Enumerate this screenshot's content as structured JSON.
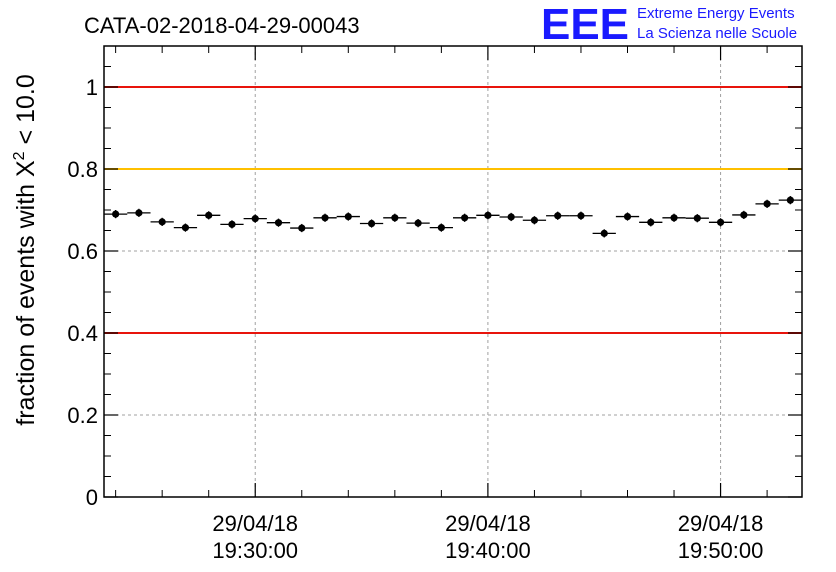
{
  "chart_data": {
    "type": "scatter",
    "title": "CATA-02-2018-04-29-00043",
    "xlabel": "",
    "ylabel": "fraction of events with X² < 10.0",
    "ylabel_parts": {
      "prefix": "fraction of events with X",
      "sup": "2",
      "suffix": " < 10.0"
    },
    "ylim": [
      0,
      1.1
    ],
    "xlim_minutes_after_19_00": [
      23.5,
      53.5
    ],
    "y_ticks": [
      "0",
      "0.2",
      "0.4",
      "0.6",
      "0.8",
      "1"
    ],
    "y_tick_values": [
      0,
      0.2,
      0.4,
      0.6,
      0.8,
      1.0
    ],
    "x_ticks": [
      {
        "minute": 30,
        "date": "29/04/18",
        "time": "19:30:00"
      },
      {
        "minute": 40,
        "date": "29/04/18",
        "time": "19:40:00"
      },
      {
        "minute": 50,
        "date": "29/04/18",
        "time": "19:50:00"
      }
    ],
    "grid": true,
    "reference_lines": [
      {
        "y": 1.0,
        "color": "#e8140c"
      },
      {
        "y": 0.8,
        "color": "#ffc000"
      },
      {
        "y": 0.4,
        "color": "#e8140c"
      }
    ],
    "series": [
      {
        "name": "fraction",
        "bin_width_minutes": 1.0,
        "x_minutes": [
          24.0,
          25.0,
          26.0,
          27.0,
          28.0,
          29.0,
          30.0,
          31.0,
          32.0,
          33.0,
          34.0,
          35.0,
          36.0,
          37.0,
          38.0,
          39.0,
          40.0,
          41.0,
          42.0,
          43.0,
          44.0,
          45.0,
          46.0,
          47.0,
          48.0,
          49.0,
          50.0,
          51.0,
          52.0,
          53.0
        ],
        "values": [
          0.69,
          0.693,
          0.671,
          0.657,
          0.687,
          0.665,
          0.679,
          0.669,
          0.656,
          0.681,
          0.684,
          0.667,
          0.681,
          0.668,
          0.657,
          0.681,
          0.687,
          0.683,
          0.675,
          0.686,
          0.686,
          0.643,
          0.684,
          0.67,
          0.681,
          0.68,
          0.67,
          0.688,
          0.715,
          0.724
        ],
        "errors": [
          0.01,
          0.01,
          0.01,
          0.01,
          0.01,
          0.01,
          0.01,
          0.01,
          0.01,
          0.01,
          0.01,
          0.01,
          0.01,
          0.01,
          0.01,
          0.01,
          0.01,
          0.01,
          0.01,
          0.01,
          0.01,
          0.01,
          0.01,
          0.01,
          0.01,
          0.01,
          0.01,
          0.01,
          0.01,
          0.01
        ]
      }
    ]
  },
  "logo": {
    "mark": "EEE",
    "line1": "Extreme Energy Events",
    "line2": "La Scienza nelle Scuole"
  },
  "colors": {
    "logo_blue": "#1a1aff",
    "red_line": "#e8140c",
    "yellow_line": "#ffc000",
    "grid": "#a0a0a0"
  }
}
